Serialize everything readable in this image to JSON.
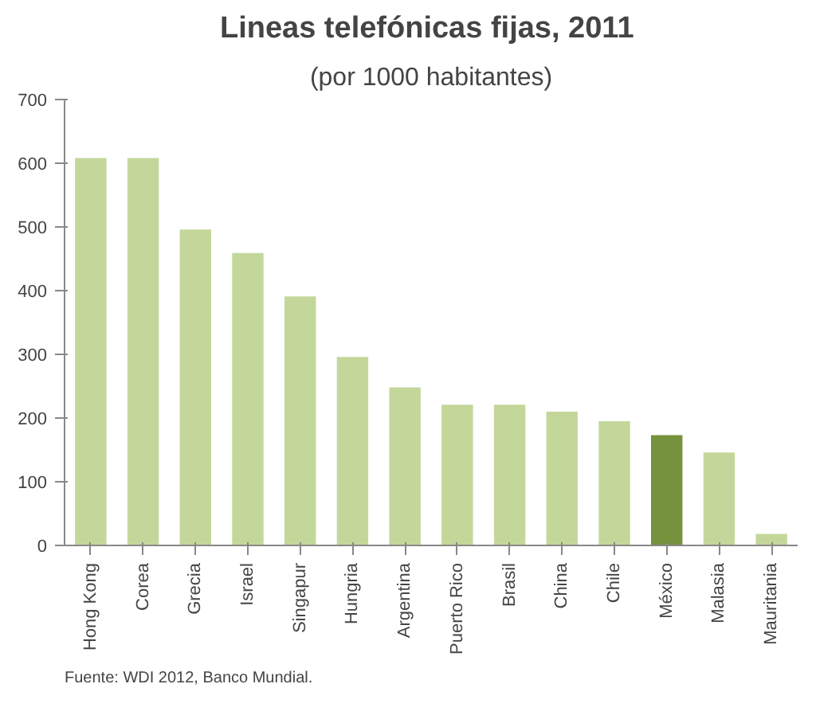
{
  "chart_data": {
    "type": "bar",
    "title": "Lineas telefónicas fijas,  2011",
    "subtitle": "(por 1000 habitantes)",
    "categories": [
      "Hong Kong",
      "Corea",
      "Grecia",
      "Israel",
      "Singapur",
      "Hungria",
      "Argentina",
      "Puerto Rico",
      "Brasil",
      "China",
      "Chile",
      "México",
      "Malasia",
      "Mauritania"
    ],
    "values": [
      608,
      608,
      496,
      459,
      391,
      296,
      248,
      221,
      221,
      210,
      195,
      173,
      146,
      18
    ],
    "colors": [
      "#c4d79b",
      "#c4d79b",
      "#c4d79b",
      "#c4d79b",
      "#c4d79b",
      "#c4d79b",
      "#c4d79b",
      "#c4d79b",
      "#c4d79b",
      "#c4d79b",
      "#c4d79b",
      "#76923c",
      "#c4d79b",
      "#c4d79b"
    ],
    "ylim": [
      0,
      700
    ],
    "yticks": [
      0,
      100,
      200,
      300,
      400,
      500,
      600,
      700
    ],
    "grid": false,
    "annotations": [
      "Fuente: WDI 2012, Banco Mundial."
    ]
  }
}
